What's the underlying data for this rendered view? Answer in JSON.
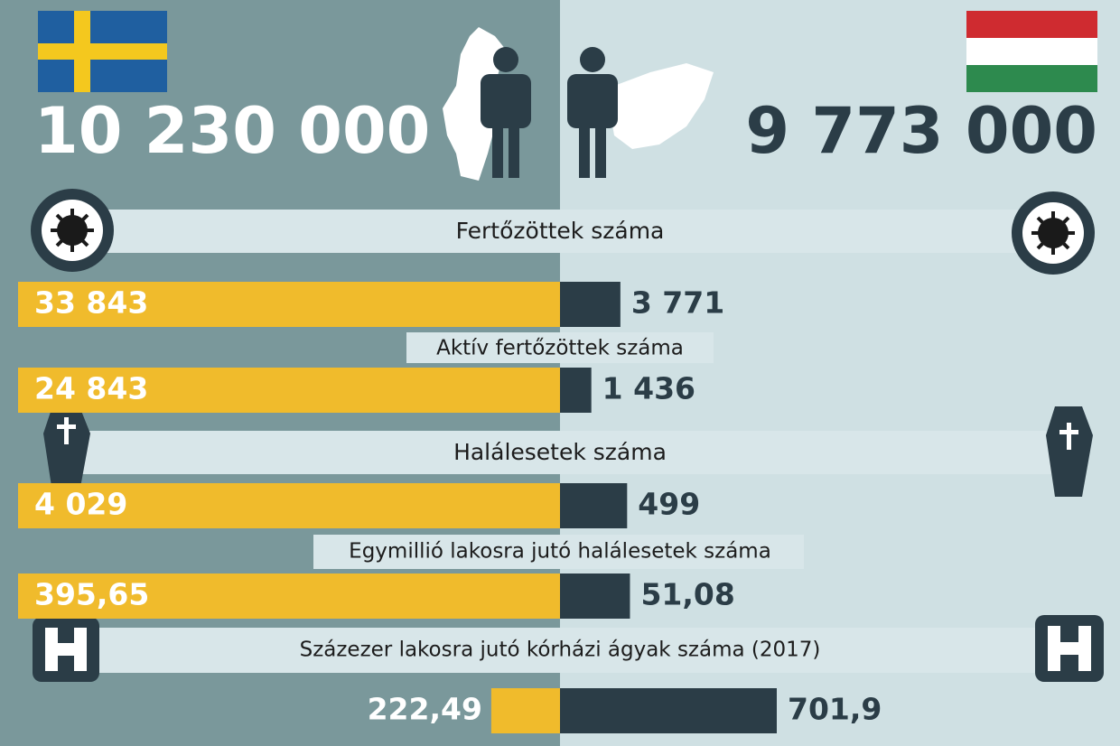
{
  "countries": [
    {
      "population": "10 230 000"
    },
    {
      "population": "9 773 000"
    }
  ],
  "metrics": [
    {
      "title": "Fertőzöttek száma",
      "values": [
        33843,
        3771
      ],
      "value_labels": [
        "33 843",
        "3 771"
      ]
    },
    {
      "title": "Aktív fertőzöttek száma",
      "values": [
        24843,
        1436
      ],
      "value_labels": [
        "24 843",
        "1 436"
      ]
    },
    {
      "title": "Halálesetek száma",
      "values": [
        4029,
        499
      ],
      "value_labels": [
        "4 029",
        "499"
      ]
    },
    {
      "title": "Egymillió lakosra jutó halálesetek száma",
      "values": [
        395.65,
        51.08
      ],
      "value_labels": [
        "395,65",
        "51,08"
      ]
    },
    {
      "title": "Százezer lakosra jutó kórházi ágyak száma (2017)",
      "values": [
        222.49,
        701.9
      ],
      "value_labels": [
        "222,49",
        "701,9"
      ]
    }
  ]
}
